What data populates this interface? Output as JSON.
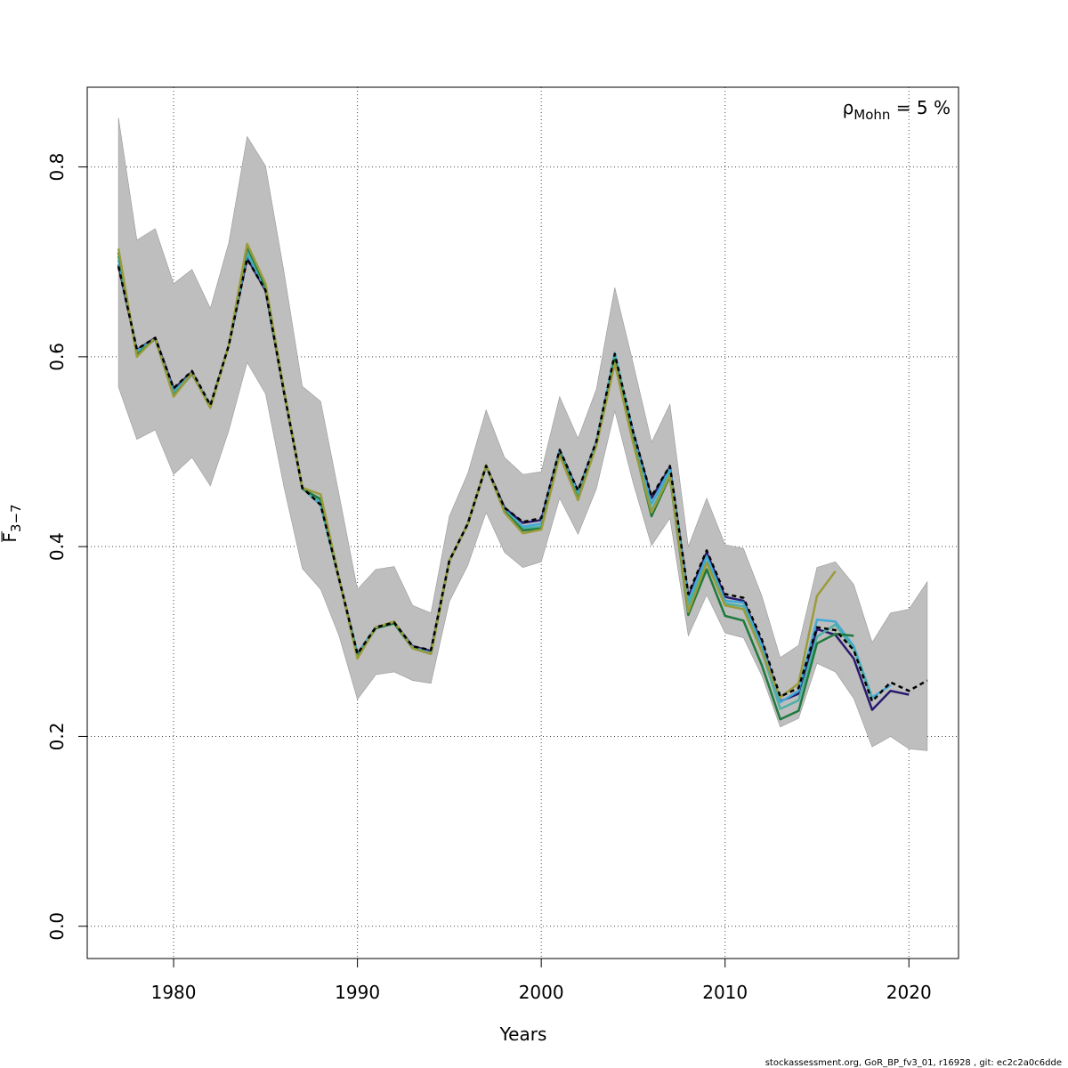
{
  "chart_data": {
    "type": "line",
    "title": "",
    "xlabel": "Years",
    "ylabel_main": "F",
    "ylabel_sub": "3−7",
    "xlim": [
      1975.3,
      2022.7
    ],
    "ylim": [
      -0.034,
      0.884
    ],
    "xticks": [
      1980,
      1990,
      2000,
      2010,
      2020
    ],
    "xtick_labels": [
      "1980",
      "1990",
      "2000",
      "2010",
      "2020"
    ],
    "yticks": [
      0.0,
      0.2,
      0.4,
      0.6,
      0.8
    ],
    "ytick_labels": [
      "0.0",
      "0.2",
      "0.4",
      "0.6",
      "0.8"
    ],
    "grid": true,
    "annotation": {
      "rho": "ρ",
      "sub": "Mohn",
      "rest": " = 5 %"
    },
    "footer": "stockassessment.org, GoR_BP_fv3_01, r16928 , git: ec2c2a0c6dde",
    "confidence_band": {
      "x": [
        1977,
        1978,
        1979,
        1980,
        1981,
        1982,
        1983,
        1984,
        1985,
        1986,
        1987,
        1988,
        1989,
        1990,
        1991,
        1992,
        1993,
        1994,
        1995,
        1996,
        1997,
        1998,
        1999,
        2000,
        2001,
        2002,
        2003,
        2004,
        2005,
        2006,
        2007,
        2008,
        2009,
        2010,
        2011,
        2012,
        2013,
        2014,
        2015,
        2016,
        2017,
        2018,
        2019,
        2020,
        2021
      ],
      "upper": [
        0.852,
        0.723,
        0.735,
        0.677,
        0.692,
        0.651,
        0.72,
        0.832,
        0.801,
        0.69,
        0.569,
        0.553,
        0.455,
        0.355,
        0.376,
        0.379,
        0.338,
        0.33,
        0.432,
        0.477,
        0.544,
        0.494,
        0.476,
        0.479,
        0.558,
        0.514,
        0.566,
        0.673,
        0.593,
        0.51,
        0.55,
        0.4,
        0.451,
        0.402,
        0.398,
        0.348,
        0.283,
        0.296,
        0.378,
        0.384,
        0.36,
        0.299,
        0.33,
        0.334,
        0.363
      ],
      "lower": [
        0.568,
        0.513,
        0.523,
        0.476,
        0.494,
        0.464,
        0.522,
        0.594,
        0.561,
        0.463,
        0.377,
        0.355,
        0.306,
        0.239,
        0.265,
        0.268,
        0.259,
        0.256,
        0.342,
        0.38,
        0.436,
        0.394,
        0.378,
        0.384,
        0.451,
        0.413,
        0.461,
        0.543,
        0.467,
        0.401,
        0.43,
        0.306,
        0.349,
        0.309,
        0.304,
        0.264,
        0.21,
        0.219,
        0.277,
        0.268,
        0.24,
        0.189,
        0.2,
        0.187,
        0.185
      ],
      "color": "#bebebe"
    },
    "series": [
      {
        "color": "#000000",
        "dashed": true,
        "x": [
          1977,
          1978,
          1979,
          1980,
          1981,
          1982,
          1983,
          1984,
          1985,
          1986,
          1987,
          1988,
          1989,
          1990,
          1991,
          1992,
          1993,
          1994,
          1995,
          1996,
          1997,
          1998,
          1999,
          2000,
          2001,
          2002,
          2003,
          2004,
          2005,
          2006,
          2007,
          2008,
          2009,
          2010,
          2011,
          2012,
          2013,
          2014,
          2015,
          2016,
          2017,
          2018,
          2019,
          2020,
          2021
        ],
        "values": [
          0.695,
          0.608,
          0.62,
          0.567,
          0.585,
          0.549,
          0.612,
          0.703,
          0.67,
          0.563,
          0.462,
          0.444,
          0.366,
          0.287,
          0.315,
          0.32,
          0.295,
          0.291,
          0.385,
          0.424,
          0.485,
          0.441,
          0.426,
          0.43,
          0.502,
          0.459,
          0.511,
          0.603,
          0.521,
          0.453,
          0.485,
          0.35,
          0.396,
          0.35,
          0.346,
          0.302,
          0.242,
          0.251,
          0.315,
          0.312,
          0.291,
          0.237,
          0.257,
          0.248,
          0.259
        ]
      },
      {
        "color": "#2a1a6e",
        "dashed": false,
        "x": [
          1977,
          1978,
          1979,
          1980,
          1981,
          1982,
          1983,
          1984,
          1985,
          1986,
          1987,
          1988,
          1989,
          1990,
          1991,
          1992,
          1993,
          1994,
          1995,
          1996,
          1997,
          1998,
          1999,
          2000,
          2001,
          2002,
          2003,
          2004,
          2005,
          2006,
          2007,
          2008,
          2009,
          2010,
          2011,
          2012,
          2013,
          2014,
          2015,
          2016,
          2017,
          2018,
          2019,
          2020
        ],
        "values": [
          0.697,
          0.607,
          0.62,
          0.566,
          0.584,
          0.548,
          0.612,
          0.704,
          0.67,
          0.563,
          0.462,
          0.444,
          0.366,
          0.287,
          0.315,
          0.32,
          0.295,
          0.29,
          0.385,
          0.424,
          0.485,
          0.441,
          0.425,
          0.428,
          0.501,
          0.458,
          0.51,
          0.602,
          0.52,
          0.451,
          0.484,
          0.347,
          0.394,
          0.347,
          0.343,
          0.299,
          0.237,
          0.245,
          0.313,
          0.307,
          0.282,
          0.228,
          0.248,
          0.244
        ]
      },
      {
        "color": "#3fa9d6",
        "dashed": false,
        "x": [
          1977,
          1978,
          1979,
          1980,
          1981,
          1982,
          1983,
          1984,
          1985,
          1986,
          1987,
          1988,
          1989,
          1990,
          1991,
          1992,
          1993,
          1994,
          1995,
          1996,
          1997,
          1998,
          1999,
          2000,
          2001,
          2002,
          2003,
          2004,
          2005,
          2006,
          2007,
          2008,
          2009,
          2010,
          2011,
          2012,
          2013,
          2014,
          2015,
          2016,
          2017,
          2018,
          2019
        ],
        "values": [
          0.702,
          0.606,
          0.619,
          0.563,
          0.583,
          0.548,
          0.612,
          0.708,
          0.672,
          0.564,
          0.462,
          0.444,
          0.366,
          0.287,
          0.315,
          0.32,
          0.294,
          0.288,
          0.385,
          0.424,
          0.485,
          0.439,
          0.421,
          0.424,
          0.5,
          0.456,
          0.509,
          0.604,
          0.518,
          0.445,
          0.482,
          0.343,
          0.39,
          0.343,
          0.341,
          0.296,
          0.236,
          0.248,
          0.323,
          0.321,
          0.295,
          0.241,
          0.254
        ]
      },
      {
        "color": "#4fb0a3",
        "dashed": false,
        "x": [
          1977,
          1978,
          1979,
          1980,
          1981,
          1982,
          1983,
          1984,
          1985,
          1986,
          1987,
          1988,
          1989,
          1990,
          1991,
          1992,
          1993,
          1994,
          1995,
          1996,
          1997,
          1998,
          1999,
          2000,
          2001,
          2002,
          2003,
          2004,
          2005,
          2006,
          2007,
          2008,
          2009,
          2010,
          2011,
          2012,
          2013,
          2014,
          2015,
          2016,
          2017,
          2018
        ],
        "values": [
          0.706,
          0.604,
          0.619,
          0.561,
          0.583,
          0.548,
          0.612,
          0.712,
          0.673,
          0.564,
          0.462,
          0.447,
          0.366,
          0.285,
          0.314,
          0.319,
          0.293,
          0.287,
          0.385,
          0.424,
          0.485,
          0.438,
          0.419,
          0.421,
          0.499,
          0.453,
          0.508,
          0.601,
          0.514,
          0.438,
          0.478,
          0.338,
          0.384,
          0.34,
          0.337,
          0.29,
          0.229,
          0.238,
          0.305,
          0.318,
          0.292,
          0.239
        ]
      },
      {
        "color": "#1e7a3c",
        "dashed": false,
        "x": [
          1977,
          1978,
          1979,
          1980,
          1981,
          1982,
          1983,
          1984,
          1985,
          1986,
          1987,
          1988,
          1989,
          1990,
          1991,
          1992,
          1993,
          1994,
          1995,
          1996,
          1997,
          1998,
          1999,
          2000,
          2001,
          2002,
          2003,
          2004,
          2005,
          2006,
          2007,
          2008,
          2009,
          2010,
          2011,
          2012,
          2013,
          2014,
          2015,
          2016,
          2017
        ],
        "values": [
          0.71,
          0.602,
          0.619,
          0.559,
          0.582,
          0.547,
          0.612,
          0.716,
          0.674,
          0.565,
          0.461,
          0.45,
          0.366,
          0.284,
          0.314,
          0.319,
          0.293,
          0.287,
          0.385,
          0.424,
          0.485,
          0.437,
          0.417,
          0.419,
          0.498,
          0.45,
          0.507,
          0.597,
          0.511,
          0.432,
          0.474,
          0.328,
          0.376,
          0.327,
          0.322,
          0.275,
          0.218,
          0.227,
          0.298,
          0.308,
          0.306
        ]
      },
      {
        "color": "#9b9b3a",
        "dashed": false,
        "x": [
          1977,
          1978,
          1979,
          1980,
          1981,
          1982,
          1983,
          1984,
          1985,
          1986,
          1987,
          1988,
          1989,
          1990,
          1991,
          1992,
          1993,
          1994,
          1995,
          1996,
          1997,
          1998,
          1999,
          2000,
          2001,
          2002,
          2003,
          2004,
          2005,
          2006,
          2007,
          2008,
          2009,
          2010,
          2011,
          2012,
          2013,
          2014,
          2015,
          2016
        ],
        "values": [
          0.714,
          0.6,
          0.62,
          0.558,
          0.583,
          0.546,
          0.612,
          0.719,
          0.677,
          0.565,
          0.462,
          0.455,
          0.367,
          0.282,
          0.315,
          0.321,
          0.293,
          0.287,
          0.385,
          0.424,
          0.486,
          0.436,
          0.414,
          0.418,
          0.496,
          0.449,
          0.507,
          0.593,
          0.509,
          0.436,
          0.475,
          0.331,
          0.383,
          0.338,
          0.334,
          0.289,
          0.241,
          0.256,
          0.348,
          0.374
        ]
      }
    ]
  }
}
